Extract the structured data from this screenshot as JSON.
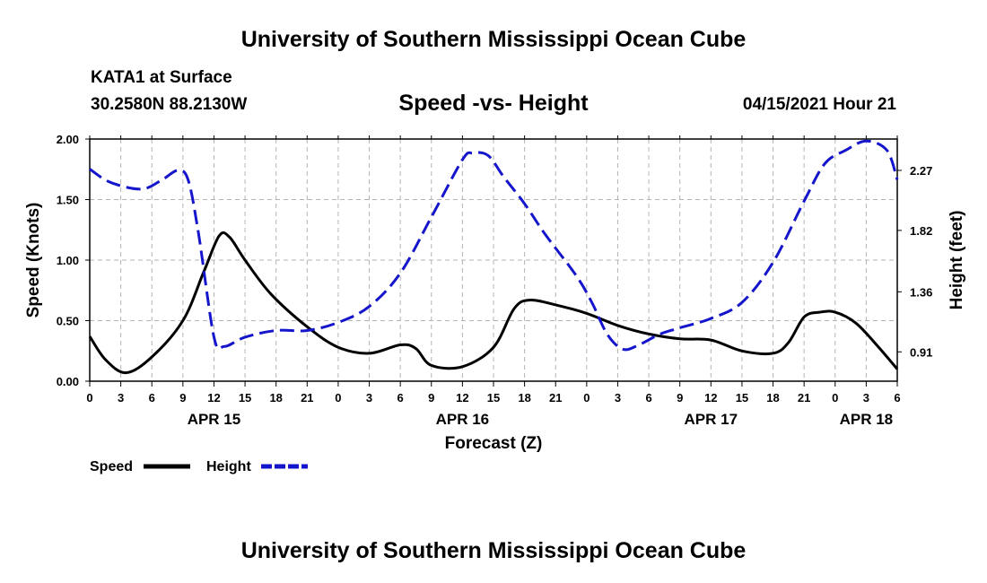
{
  "header": {
    "title": "University of Southern Mississippi Ocean Cube",
    "station": "KATA1 at Surface",
    "coords": "30.2580N  88.2130W",
    "datetime": "04/15/2021 Hour 21",
    "footer_title": "University of Southern Mississippi Ocean Cube"
  },
  "chart_data": {
    "type": "line",
    "title": "Speed -vs- Height",
    "xlabel": "Forecast (Z)",
    "ylabel_left": "Speed (Knots)",
    "ylabel_right": "Height (feet)",
    "xlim": [
      0,
      78
    ],
    "ylim_left": [
      0,
      2.0
    ],
    "ylim_right": [
      0.69,
      2.505
    ],
    "x_ticks": [
      0,
      3,
      6,
      9,
      12,
      15,
      18,
      21,
      24,
      27,
      30,
      33,
      36,
      39,
      42,
      45,
      48,
      51,
      54,
      57,
      60,
      63,
      66,
      69,
      72,
      75,
      78
    ],
    "x_tick_labels": [
      "0",
      "3",
      "6",
      "9",
      "12",
      "15",
      "18",
      "21",
      "0",
      "3",
      "6",
      "9",
      "12",
      "15",
      "18",
      "21",
      "0",
      "3",
      "6",
      "9",
      "12",
      "15",
      "18",
      "21",
      "0",
      "3",
      "6"
    ],
    "left_ticks": [
      0.0,
      0.5,
      1.0,
      1.5,
      2.0
    ],
    "left_tick_labels": [
      "0.00",
      "0.50",
      "1.00",
      "1.50",
      "2.00"
    ],
    "right_ticks": [
      0.91,
      1.36,
      1.82,
      2.27
    ],
    "right_tick_labels": [
      "0.91",
      "1.36",
      "1.82",
      "2.27"
    ],
    "date_labels": [
      {
        "x": 12,
        "label": "APR 15"
      },
      {
        "x": 36,
        "label": "APR 16"
      },
      {
        "x": 60,
        "label": "APR 17"
      },
      {
        "x": 75,
        "label": "APR 18"
      }
    ],
    "grid": true,
    "series": [
      {
        "name": "Speed",
        "axis": "left",
        "color": "#000000",
        "style": "solid",
        "x": [
          0,
          1.5,
          3.5,
          6,
          9,
          11,
          12.5,
          13.5,
          15,
          17.5,
          21,
          24,
          27,
          30,
          31.5,
          33,
          36,
          39,
          41,
          42.5,
          45,
          48,
          51,
          54,
          57,
          60,
          63,
          66,
          67.5,
          69,
          70.5,
          72,
          74,
          76,
          78
        ],
        "values": [
          0.37,
          0.18,
          0.07,
          0.2,
          0.5,
          0.9,
          1.2,
          1.19,
          1.0,
          0.72,
          0.45,
          0.28,
          0.23,
          0.3,
          0.27,
          0.13,
          0.12,
          0.28,
          0.6,
          0.67,
          0.63,
          0.56,
          0.46,
          0.39,
          0.35,
          0.34,
          0.25,
          0.23,
          0.32,
          0.53,
          0.57,
          0.57,
          0.48,
          0.3,
          0.1
        ]
      },
      {
        "name": "Height",
        "axis": "right",
        "color": "#1515cc",
        "style": "dashed",
        "x": [
          0,
          2,
          5,
          7,
          8.5,
          9.5,
          10.5,
          12,
          13,
          15,
          18,
          21,
          24,
          27,
          30,
          33,
          36,
          37,
          38.5,
          40,
          42,
          44,
          47,
          48.5,
          50,
          51.5,
          53,
          55,
          57,
          60,
          63,
          66,
          69,
          71,
          73,
          75,
          77,
          78
        ],
        "values": [
          2.28,
          2.18,
          2.13,
          2.2,
          2.27,
          2.2,
          1.8,
          1.02,
          0.95,
          1.02,
          1.07,
          1.07,
          1.13,
          1.25,
          1.5,
          1.92,
          2.35,
          2.4,
          2.38,
          2.22,
          2.02,
          1.79,
          1.48,
          1.28,
          1.04,
          0.93,
          0.96,
          1.04,
          1.09,
          1.16,
          1.28,
          1.58,
          2.04,
          2.32,
          2.42,
          2.49,
          2.42,
          2.2
        ]
      }
    ],
    "legend": {
      "placement": "bottom-left",
      "entries": [
        "Speed",
        "Height"
      ]
    }
  }
}
